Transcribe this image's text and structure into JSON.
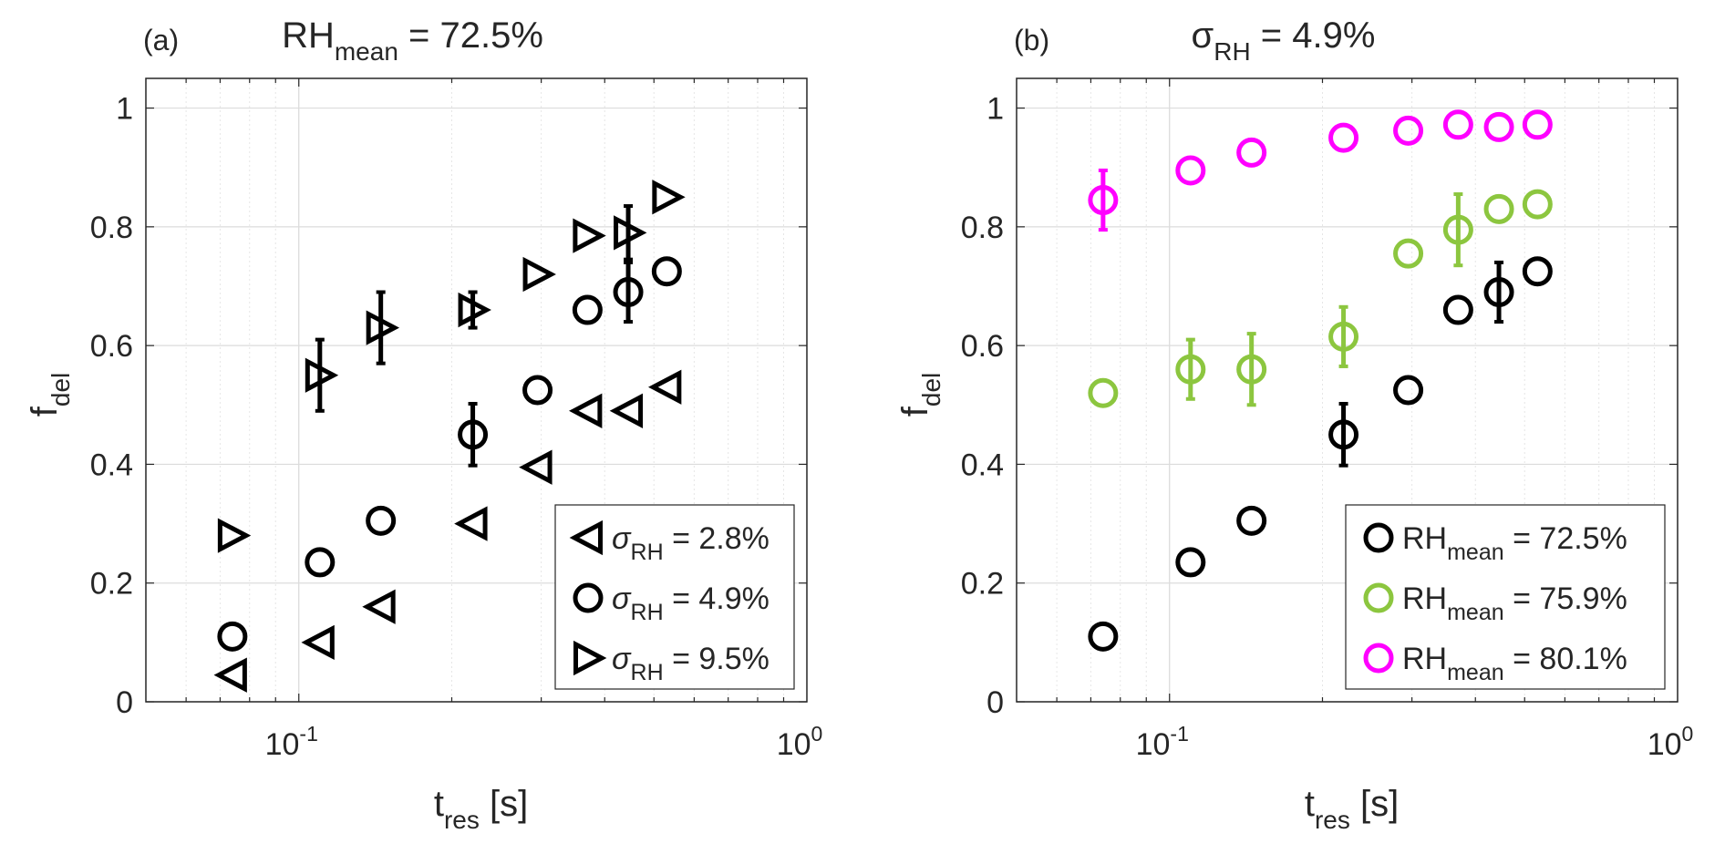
{
  "chart_data": [
    {
      "type": "scatter",
      "panel_label": "(a)",
      "title": {
        "main": "RH",
        "sub": "mean",
        "rest": " = 72.5%"
      },
      "xlabel": {
        "main": "t",
        "sub": "res",
        "rest": " [s]"
      },
      "ylabel": {
        "main": "f",
        "sub": "del"
      },
      "xscale": "log",
      "xlim": [
        0.05,
        1.0
      ],
      "ylim": [
        0,
        1.05
      ],
      "xticks": [
        {
          "value": 0.1,
          "base": "10",
          "exp": "-1"
        },
        {
          "value": 1.0,
          "base": "10",
          "exp": "0"
        }
      ],
      "yticks": [
        {
          "value": 0,
          "label": "0"
        },
        {
          "value": 0.2,
          "label": "0.2"
        },
        {
          "value": 0.4,
          "label": "0.4"
        },
        {
          "value": 0.6,
          "label": "0.6"
        },
        {
          "value": 0.8,
          "label": "0.8"
        },
        {
          "value": 1.0,
          "label": "1"
        }
      ],
      "grid": true,
      "legend_position": "bottom-right",
      "series": [
        {
          "name": "σRH = 2.8%",
          "legend": {
            "sym": "σ",
            "sub": "RH",
            "rest": " = 2.8%"
          },
          "marker": "triangle-left",
          "color": "#000000",
          "points": [
            {
              "x": 0.074,
              "y": 0.045
            },
            {
              "x": 0.11,
              "y": 0.1
            },
            {
              "x": 0.145,
              "y": 0.16
            },
            {
              "x": 0.22,
              "y": 0.3
            },
            {
              "x": 0.295,
              "y": 0.395
            },
            {
              "x": 0.37,
              "y": 0.49
            },
            {
              "x": 0.445,
              "y": 0.49
            },
            {
              "x": 0.53,
              "y": 0.53
            }
          ]
        },
        {
          "name": "σRH = 4.9%",
          "legend": {
            "sym": "σ",
            "sub": "RH",
            "rest": " = 4.9%"
          },
          "marker": "circle",
          "color": "#000000",
          "points": [
            {
              "x": 0.074,
              "y": 0.11
            },
            {
              "x": 0.11,
              "y": 0.235
            },
            {
              "x": 0.145,
              "y": 0.305
            },
            {
              "x": 0.22,
              "y": 0.45,
              "err": 0.052
            },
            {
              "x": 0.295,
              "y": 0.525
            },
            {
              "x": 0.37,
              "y": 0.66
            },
            {
              "x": 0.445,
              "y": 0.69,
              "err": 0.05
            },
            {
              "x": 0.53,
              "y": 0.725
            }
          ]
        },
        {
          "name": "σRH = 9.5%",
          "legend": {
            "sym": "σ",
            "sub": "RH",
            "rest": " = 9.5%"
          },
          "marker": "triangle-right",
          "color": "#000000",
          "points": [
            {
              "x": 0.074,
              "y": 0.28
            },
            {
              "x": 0.11,
              "y": 0.55,
              "err": 0.06
            },
            {
              "x": 0.145,
              "y": 0.63,
              "err": 0.06
            },
            {
              "x": 0.22,
              "y": 0.66,
              "err": 0.03
            },
            {
              "x": 0.295,
              "y": 0.72
            },
            {
              "x": 0.37,
              "y": 0.785
            },
            {
              "x": 0.445,
              "y": 0.79,
              "err": 0.045
            },
            {
              "x": 0.53,
              "y": 0.85
            }
          ]
        }
      ]
    },
    {
      "type": "scatter",
      "panel_label": "(b)",
      "title": {
        "main": "σ",
        "sub": "RH",
        "rest": " = 4.9%"
      },
      "xlabel": {
        "main": "t",
        "sub": "res",
        "rest": " [s]"
      },
      "ylabel": {
        "main": "f",
        "sub": "del"
      },
      "xscale": "log",
      "xlim": [
        0.05,
        1.0
      ],
      "ylim": [
        0,
        1.05
      ],
      "xticks": [
        {
          "value": 0.1,
          "base": "10",
          "exp": "-1"
        },
        {
          "value": 1.0,
          "base": "10",
          "exp": "0"
        }
      ],
      "yticks": [
        {
          "value": 0,
          "label": "0"
        },
        {
          "value": 0.2,
          "label": "0.2"
        },
        {
          "value": 0.4,
          "label": "0.4"
        },
        {
          "value": 0.6,
          "label": "0.6"
        },
        {
          "value": 0.8,
          "label": "0.8"
        },
        {
          "value": 1.0,
          "label": "1"
        }
      ],
      "grid": true,
      "legend_position": "bottom-right",
      "series": [
        {
          "name": "RHmean = 72.5%",
          "legend": {
            "sym": "RH",
            "sub": "mean",
            "rest": " = 72.5%"
          },
          "marker": "circle",
          "color": "#000000",
          "points": [
            {
              "x": 0.074,
              "y": 0.11
            },
            {
              "x": 0.11,
              "y": 0.235
            },
            {
              "x": 0.145,
              "y": 0.305
            },
            {
              "x": 0.22,
              "y": 0.45,
              "err": 0.052
            },
            {
              "x": 0.295,
              "y": 0.525
            },
            {
              "x": 0.37,
              "y": 0.66
            },
            {
              "x": 0.445,
              "y": 0.69,
              "err": 0.05
            },
            {
              "x": 0.53,
              "y": 0.725
            }
          ]
        },
        {
          "name": "RHmean = 75.9%",
          "legend": {
            "sym": "RH",
            "sub": "mean",
            "rest": " = 75.9%"
          },
          "marker": "circle",
          "color": "#8cc63f",
          "points": [
            {
              "x": 0.074,
              "y": 0.52
            },
            {
              "x": 0.11,
              "y": 0.56,
              "err": 0.05
            },
            {
              "x": 0.145,
              "y": 0.56,
              "err": 0.06
            },
            {
              "x": 0.22,
              "y": 0.615,
              "err": 0.05
            },
            {
              "x": 0.295,
              "y": 0.755
            },
            {
              "x": 0.37,
              "y": 0.795,
              "err": 0.06
            },
            {
              "x": 0.445,
              "y": 0.83
            },
            {
              "x": 0.53,
              "y": 0.838
            }
          ]
        },
        {
          "name": "RHmean = 80.1%",
          "legend": {
            "sym": "RH",
            "sub": "mean",
            "rest": " = 80.1%"
          },
          "marker": "circle",
          "color": "#ff00ff",
          "points": [
            {
              "x": 0.074,
              "y": 0.845,
              "err": 0.05
            },
            {
              "x": 0.11,
              "y": 0.895
            },
            {
              "x": 0.145,
              "y": 0.925
            },
            {
              "x": 0.22,
              "y": 0.95
            },
            {
              "x": 0.295,
              "y": 0.962
            },
            {
              "x": 0.37,
              "y": 0.972
            },
            {
              "x": 0.445,
              "y": 0.968
            },
            {
              "x": 0.53,
              "y": 0.972
            }
          ]
        }
      ]
    }
  ]
}
